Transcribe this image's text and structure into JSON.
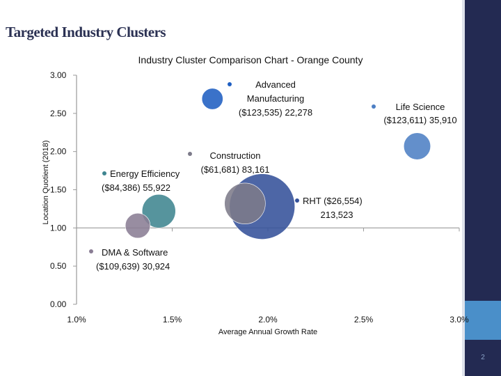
{
  "slide": {
    "title": "Targeted Industry Clusters",
    "page_number": "2"
  },
  "chart_data": {
    "type": "scatter",
    "subtype": "bubble",
    "title": "Industry Cluster Comparison Chart - Orange County",
    "xlabel": "Average Annual Growth Rate",
    "ylabel": "Location Quotient (2018)",
    "xlim": [
      1.0,
      3.0
    ],
    "ylim": [
      0.0,
      3.0
    ],
    "x_ticks": [
      {
        "value": 1.0,
        "label": "1.0%"
      },
      {
        "value": 1.5,
        "label": "1.5%"
      },
      {
        "value": 2.0,
        "label": "2.0%"
      },
      {
        "value": 2.5,
        "label": "2.5%"
      },
      {
        "value": 3.0,
        "label": "3.0%"
      }
    ],
    "y_ticks": [
      {
        "value": 0.0,
        "label": "0.00"
      },
      {
        "value": 0.5,
        "label": "0.50"
      },
      {
        "value": 1.0,
        "label": "1.00"
      },
      {
        "value": 1.5,
        "label": "1.50"
      },
      {
        "value": 2.0,
        "label": "2.00"
      },
      {
        "value": 2.5,
        "label": "2.50"
      },
      {
        "value": 3.0,
        "label": "3.00"
      }
    ],
    "series": [
      {
        "name": "Advanced Manufacturing",
        "label_lines": [
          "Advanced",
          "Manufacturing",
          "($123,535) 22,278"
        ],
        "x": 1.71,
        "y": 2.69,
        "employment": 22278,
        "color": "#1f5fc2"
      },
      {
        "name": "Life Science",
        "label_lines": [
          "Life Science",
          "($123,611) 35,910"
        ],
        "x": 2.78,
        "y": 2.07,
        "employment": 35910,
        "color": "#4d7fc4"
      },
      {
        "name": "Construction",
        "label_lines": [
          "Construction",
          "($61,681) 83,161"
        ],
        "x": 1.88,
        "y": 1.32,
        "employment": 83161,
        "color": "#7d7b8a"
      },
      {
        "name": "Energy Efficiency",
        "label_lines": [
          "Energy Efficiency",
          "($84,386) 55,922"
        ],
        "x": 1.43,
        "y": 1.22,
        "employment": 55922,
        "color": "#3f8590"
      },
      {
        "name": "RHT",
        "label_lines": [
          "RHT ($26,554)",
          "213,523"
        ],
        "x": 1.97,
        "y": 1.28,
        "employment": 213523,
        "color": "#34519a"
      },
      {
        "name": "DMA & Software",
        "label_lines": [
          "DMA & Software",
          "($109,639) 30,924"
        ],
        "x": 1.32,
        "y": 1.03,
        "employment": 30924,
        "color": "#8a7d94"
      }
    ]
  }
}
